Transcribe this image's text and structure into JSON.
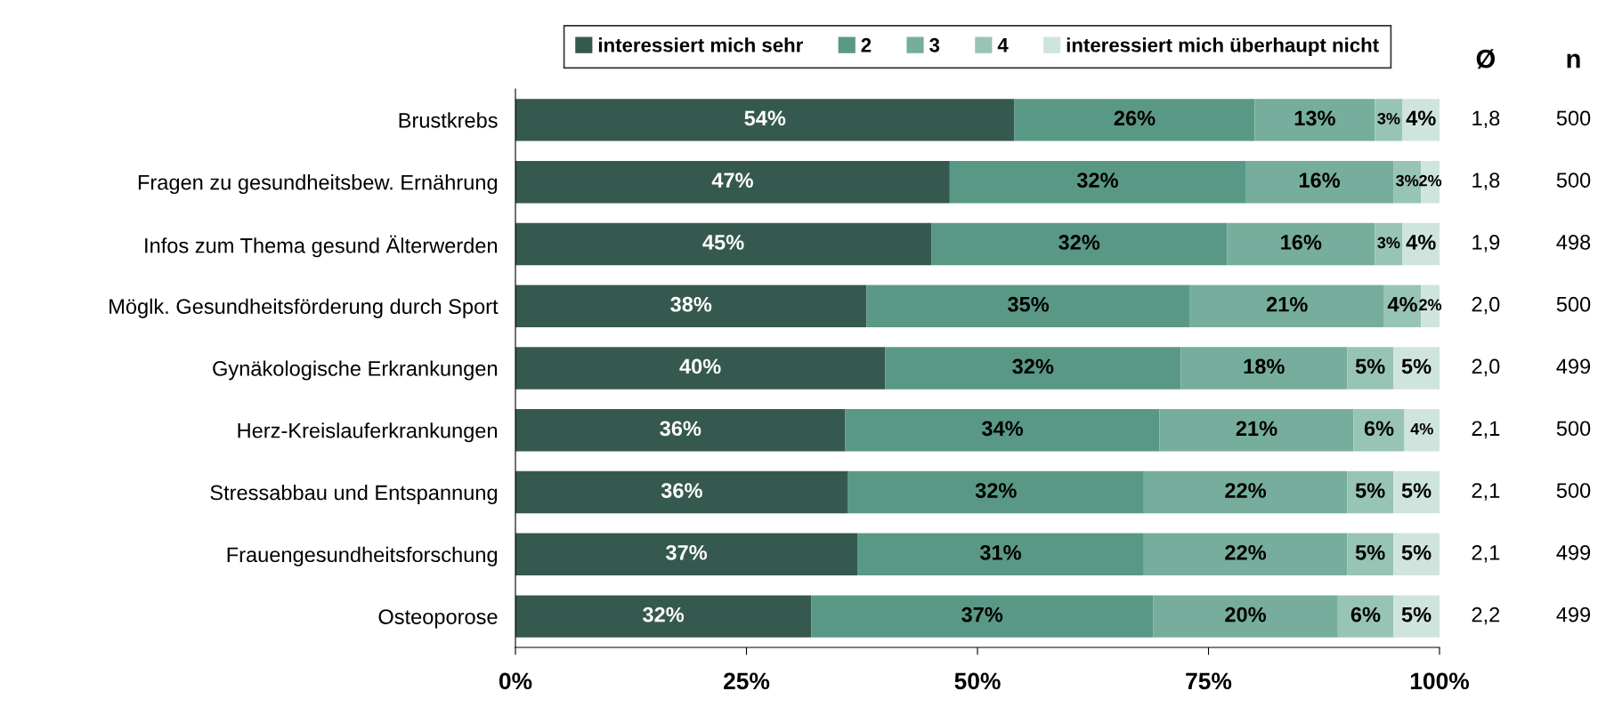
{
  "chart_data": {
    "type": "bar",
    "orientation": "horizontal",
    "stacked": true,
    "categories": [
      "Brustkrebs",
      "Fragen zu gesundheitsbew. Ernährung",
      "Infos zum Thema gesund Älterwerden",
      "Möglk. Gesundheitsförderung durch Sport",
      "Gynäkologische Erkrankungen",
      "Herz-Kreislauferkrankungen",
      "Stressabbau und Entspannung",
      "Frauengesundheitsforschung",
      "Osteoporose"
    ],
    "series": [
      {
        "name": "interessiert mich sehr",
        "color": "#35594f",
        "values": [
          54,
          47,
          45,
          38,
          40,
          35.7,
          36,
          37,
          32
        ],
        "value_labels": [
          "54%",
          "47%",
          "45%",
          "38%",
          "40%",
          "36%",
          "36%",
          "37%",
          "32%"
        ]
      },
      {
        "name": "2",
        "color": "#5a9886",
        "values": [
          26,
          32,
          32,
          35,
          32,
          34,
          32,
          31,
          37
        ],
        "value_labels": [
          "26%",
          "32%",
          "32%",
          "35%",
          "32%",
          "34%",
          "32%",
          "31%",
          "37%"
        ]
      },
      {
        "name": "3",
        "color": "#76ad9c",
        "values": [
          13,
          16,
          16,
          21,
          18,
          21,
          22,
          22,
          20
        ],
        "value_labels": [
          "13%",
          "16%",
          "16%",
          "21%",
          "18%",
          "21%",
          "22%",
          "22%",
          "20%"
        ]
      },
      {
        "name": "4",
        "color": "#98c4b5",
        "values": [
          3,
          3,
          3,
          4,
          5,
          5.5,
          5,
          5,
          6
        ],
        "value_labels": [
          "3%",
          "3%",
          "3%",
          "4%",
          "5%",
          "6%",
          "5%",
          "5%",
          "6%"
        ]
      },
      {
        "name": "interessiert mich überhaupt nicht",
        "color": "#cfe4dc",
        "values": [
          4,
          2,
          4,
          2,
          5,
          3.8,
          5,
          5,
          5
        ],
        "value_labels": [
          "4%",
          "2%",
          "4%",
          "2%",
          "5%",
          "4%",
          "5%",
          "5%",
          "5%"
        ]
      }
    ],
    "xlim": [
      0,
      100
    ],
    "xticks": [
      {
        "value": 0,
        "label": "0%"
      },
      {
        "value": 25,
        "label": "25%"
      },
      {
        "value": 50,
        "label": "50%"
      },
      {
        "value": 75,
        "label": "75%"
      },
      {
        "value": 100,
        "label": "100%"
      }
    ],
    "legend": "top",
    "grid": false,
    "annotations": [
      "Ø",
      "n",
      "1,8",
      "500",
      "1,8",
      "500",
      "1,9",
      "498",
      "2,0",
      "500",
      "2,0",
      "499",
      "2,1",
      "500",
      "2,1",
      "500",
      "2,1",
      "499",
      "2,2",
      "499"
    ]
  }
}
